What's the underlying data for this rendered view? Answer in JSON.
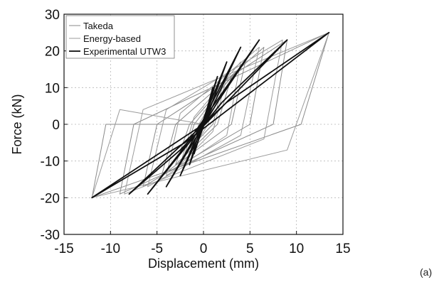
{
  "chart_data": {
    "type": "line",
    "title": "",
    "xlabel": "Displacement (mm)",
    "ylabel": "Force (kN)",
    "xlim": [
      -15,
      15
    ],
    "ylim": [
      -30,
      30
    ],
    "x_ticks": [
      -15,
      -10,
      -5,
      0,
      5,
      10,
      15
    ],
    "y_ticks": [
      -30,
      -20,
      -10,
      0,
      10,
      20,
      30
    ],
    "x_tick_labels": [
      "-15",
      "-10",
      "-5",
      "0",
      "5",
      "10",
      "15"
    ],
    "y_tick_labels": [
      "-30",
      "-20",
      "-10",
      "0",
      "10",
      "20",
      "30"
    ],
    "grid": true,
    "legend_position": "top-left",
    "panel_label": "(a)",
    "series": [
      {
        "name": "Takeda",
        "color": "#8a8a8a",
        "line_style": "solid",
        "x": [
          0,
          2,
          1,
          -2,
          -1,
          3,
          1.5,
          -3,
          -1.5,
          4.5,
          3,
          -4.5,
          -3,
          6.5,
          5,
          -6.5,
          -5,
          9,
          7.5,
          -9,
          -7.5,
          13.5,
          10.5,
          -12,
          -10.5,
          0
        ],
        "y": [
          0,
          10,
          0,
          -8,
          0,
          13,
          0,
          -11,
          0,
          17,
          0,
          -14,
          0,
          21,
          0,
          -17,
          0,
          23,
          0,
          -19,
          0,
          25,
          0,
          -20,
          0,
          0
        ]
      },
      {
        "name": "Energy-based",
        "color": "#9b9b9b",
        "line_style": "solid",
        "x": [
          0,
          1.5,
          0.5,
          -1.5,
          -0.5,
          2.5,
          1,
          -2.5,
          -1,
          4,
          2.5,
          -4,
          -2.5,
          6,
          4,
          -6,
          -4,
          8.5,
          6.5,
          -8.5,
          -6.5,
          13.5,
          9,
          -12,
          -9,
          0
        ],
        "y": [
          0,
          10,
          0,
          -8,
          0,
          13,
          -2,
          -11,
          2,
          17,
          -3,
          -14,
          3,
          21,
          -3,
          -17,
          4,
          23,
          -4,
          -19,
          4,
          25,
          -7,
          -20,
          4,
          0
        ]
      },
      {
        "name": "Experimental UTW3",
        "color": "#111111",
        "line_style": "solid",
        "x": [
          0,
          1,
          -0.5,
          -1,
          0.5,
          1.5,
          -0.8,
          -1.5,
          0.8,
          2.5,
          -1,
          -2.5,
          1,
          4,
          -1.5,
          -4,
          1.5,
          6,
          -2,
          -6,
          2,
          9,
          -2.5,
          -8,
          2.5,
          13.5,
          -2,
          -12,
          0
        ],
        "y": [
          0,
          10,
          -4,
          -8,
          4,
          13,
          -5,
          -11,
          5,
          17,
          -5,
          -14,
          5,
          21,
          -6,
          -17,
          6,
          23,
          -6,
          -19,
          6,
          23,
          -7,
          -19,
          6,
          25,
          -5,
          -20,
          0
        ]
      }
    ]
  }
}
